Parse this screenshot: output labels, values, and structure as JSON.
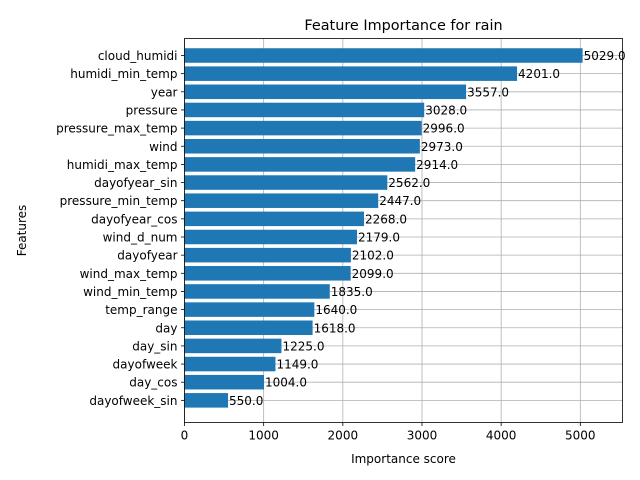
{
  "chart_data": {
    "type": "bar",
    "orientation": "horizontal",
    "title": "Feature Importance for rain",
    "xlabel": "Importance score",
    "ylabel": "Features",
    "xlim": [
      0,
      5533
    ],
    "xticks": [
      0,
      1000,
      2000,
      3000,
      4000,
      5000
    ],
    "grid": true,
    "bar_color": "#1f77b4",
    "categories": [
      "cloud_humidi",
      "humidi_min_temp",
      "year",
      "pressure",
      "pressure_max_temp",
      "wind",
      "humidi_max_temp",
      "dayofyear_sin",
      "pressure_min_temp",
      "dayofyear_cos",
      "wind_d_num",
      "dayofyear",
      "wind_max_temp",
      "wind_min_temp",
      "temp_range",
      "day",
      "day_sin",
      "dayofweek",
      "day_cos",
      "dayofweek_sin"
    ],
    "values": [
      5029.0,
      4201.0,
      3557.0,
      3028.0,
      2996.0,
      2973.0,
      2914.0,
      2562.0,
      2447.0,
      2268.0,
      2179.0,
      2102.0,
      2099.0,
      1835.0,
      1640.0,
      1618.0,
      1225.0,
      1149.0,
      1004.0,
      550.0
    ],
    "value_labels": [
      "5029.0",
      "4201.0",
      "3557.0",
      "3028.0",
      "2996.0",
      "2973.0",
      "2914.0",
      "2562.0",
      "2447.0",
      "2268.0",
      "2179.0",
      "2102.0",
      "2099.0",
      "1835.0",
      "1640.0",
      "1618.0",
      "1225.0",
      "1149.0",
      "1004.0",
      "550.0"
    ]
  }
}
